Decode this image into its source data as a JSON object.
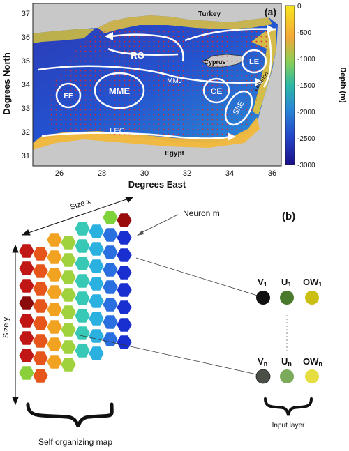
{
  "panel_a": {
    "label": "(a)",
    "x_axis_label": "Degrees East",
    "y_axis_label": "Degrees North",
    "x_ticks": [
      "26",
      "28",
      "30",
      "32",
      "34",
      "36"
    ],
    "y_ticks": [
      "37",
      "36",
      "35",
      "34",
      "33",
      "32",
      "31"
    ],
    "colorbar": {
      "label": "Depth (m)",
      "ticks": [
        "0",
        "-500",
        "-1000",
        "-1500",
        "-2000",
        "-2500",
        "-3000"
      ]
    },
    "countries": {
      "turkey": "Turkey",
      "cyprus": "Cyprus",
      "lebanon": "Lebanon",
      "egypt": "Egypt"
    },
    "features": {
      "rg": "RG",
      "mme": "MME",
      "mmj": "MMJ",
      "ee": "EE",
      "ce": "CE",
      "le": "LE",
      "she": "ShE",
      "lec": "LEC"
    }
  },
  "panel_b": {
    "label": "(b)",
    "size_x": "Size x",
    "size_y": "Size y",
    "neuron": "Neuron m",
    "map_label": "Self organizing map",
    "input_layer_label": "Input layer",
    "inputs": [
      {
        "name": "V",
        "sub": "1",
        "color": "#111111"
      },
      {
        "name": "U",
        "sub": "1",
        "color": "#4a7a2c"
      },
      {
        "name": "OW",
        "sub": "1",
        "color": "#c9be12"
      },
      {
        "name": "V",
        "sub": "n",
        "color": "#4a4f48"
      },
      {
        "name": "U",
        "sub": "n",
        "color": "#7aaa5a"
      },
      {
        "name": "OW",
        "sub": "n",
        "color": "#e6dd40"
      }
    ]
  },
  "colors": {
    "deep": "#1a0f8a",
    "shallow": "#f2c417",
    "land": "#c8c8c8"
  }
}
